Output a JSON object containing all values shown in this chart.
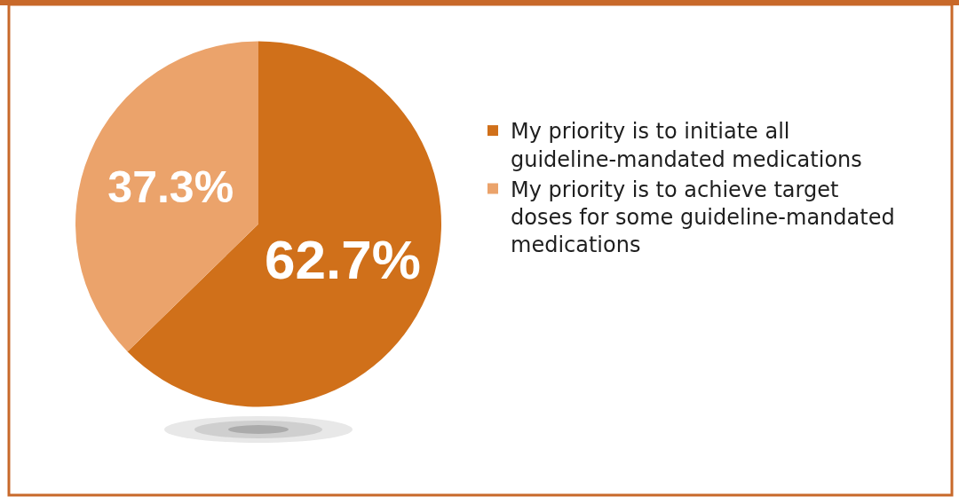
{
  "chart_data": {
    "type": "pie",
    "categories": [
      "My priority is to initiate all guideline-mandated medications",
      "My priority is to achieve target doses for some guideline-mandated medications"
    ],
    "values": [
      62.7,
      37.3
    ],
    "colors": [
      "#d0701a",
      "#eba36b"
    ],
    "value_labels": [
      "62.7%",
      "37.3%"
    ],
    "legend": "right"
  }
}
